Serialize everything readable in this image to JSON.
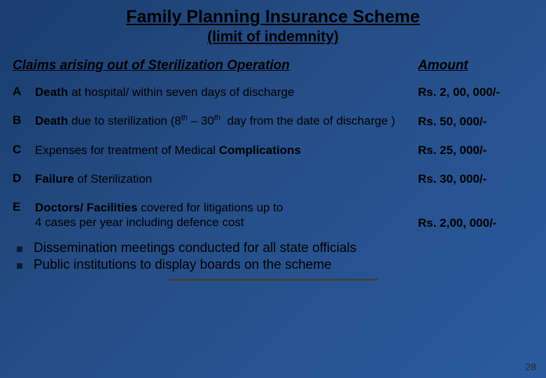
{
  "colors": {
    "bg_gradient_from": "#1a3c6e",
    "bg_gradient_to": "#2a5a9e",
    "text": "#000000",
    "bullet_square": "#081a36",
    "divider": "#404040"
  },
  "title": "Family Planning Insurance Scheme",
  "subtitle": "(limit of indemnity)",
  "column_headers": {
    "left": "Claims arising out of Sterilization Operation",
    "right": "Amount"
  },
  "rows": [
    {
      "letter": "A",
      "desc_html": "<b>Death</b> at hospital/ within seven days of discharge",
      "amount": "Rs. 2, 00, 000/-"
    },
    {
      "letter": "B",
      "desc_html": "<b>Death</b> due to sterilization (8<span class='sup'>th</span> – 30<span class='sup'>th</span>&nbsp; day from the date of discharge )",
      "amount": "Rs. 50, 000/-"
    },
    {
      "letter": "C",
      "desc_html": "Expenses for treatment of Medical <b>Complications</b>",
      "amount": "Rs. 25, 000/-"
    },
    {
      "letter": "D",
      "desc_html": "<b>Failure</b> of Sterilization",
      "amount": "Rs. 30, 000/-"
    },
    {
      "letter": "E",
      "desc_html": "<b>Doctors/ Facilities</b> covered for litigations up to<br>4 cases per year including defence cost",
      "amount": "Rs. 2,00, 000/-"
    }
  ],
  "bullets": [
    "Dissemination meetings conducted for all state officials",
    "Public institutions to display boards on the scheme"
  ],
  "page_number": "28"
}
